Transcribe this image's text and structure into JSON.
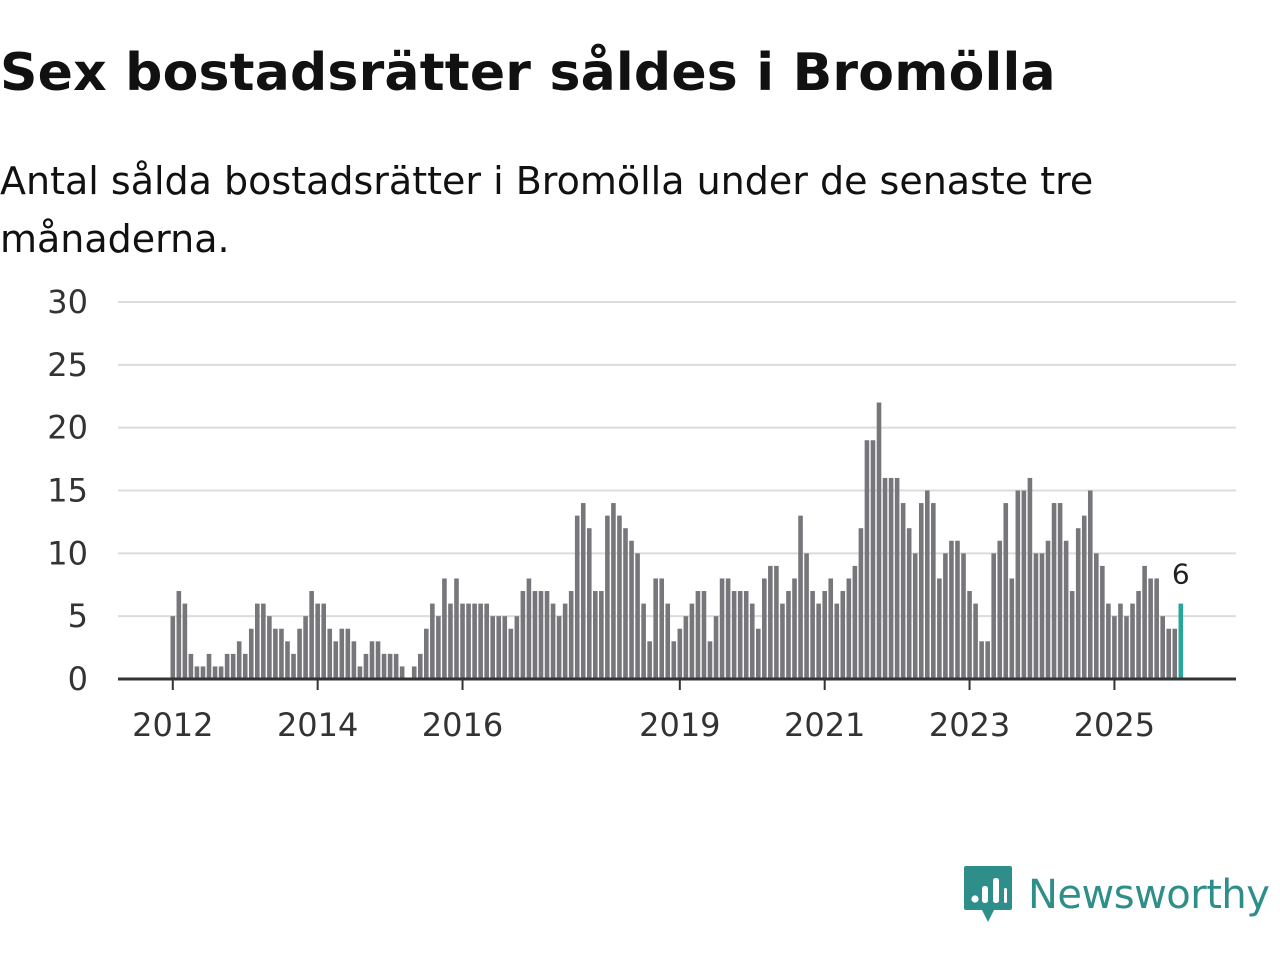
{
  "header": {
    "title": "Sex bostadsrätter såldes i Bromölla",
    "subtitle": "Antal sålda bostadsrätter i Bromölla under de senaste tre månaderna."
  },
  "brand": {
    "name": "Newsworthy",
    "icon": "newsworthy-logo-icon",
    "color": "#2e8f8a"
  },
  "chart_data": {
    "type": "bar",
    "title": "Sex bostadsrätter såldes i Bromölla",
    "subtitle": "Antal sålda bostadsrätter i Bromölla under de senaste tre månaderna.",
    "xlabel": "",
    "ylabel": "",
    "ylim": [
      0,
      30
    ],
    "yticks": [
      0,
      5,
      10,
      15,
      20,
      25,
      30
    ],
    "grid": true,
    "xticks": [
      {
        "label": "2012",
        "index": 0
      },
      {
        "label": "2014",
        "index": 24
      },
      {
        "label": "2016",
        "index": 48
      },
      {
        "label": "2019",
        "index": 84
      },
      {
        "label": "2021",
        "index": 108
      },
      {
        "label": "2023",
        "index": 132
      },
      {
        "label": "2025",
        "index": 156
      }
    ],
    "bar_color": "#77767b",
    "highlight_color": "#2aa59a",
    "last_label": "6",
    "values": [
      5,
      7,
      6,
      2,
      1,
      1,
      2,
      1,
      1,
      2,
      2,
      3,
      2,
      4,
      6,
      6,
      5,
      4,
      4,
      3,
      2,
      4,
      5,
      7,
      6,
      6,
      4,
      3,
      4,
      4,
      3,
      1,
      2,
      3,
      3,
      2,
      2,
      2,
      1,
      0,
      1,
      2,
      4,
      6,
      5,
      8,
      6,
      8,
      6,
      6,
      6,
      6,
      6,
      5,
      5,
      5,
      4,
      5,
      7,
      8,
      7,
      7,
      7,
      6,
      5,
      6,
      7,
      13,
      14,
      12,
      7,
      7,
      13,
      14,
      13,
      12,
      11,
      10,
      6,
      3,
      8,
      8,
      6,
      3,
      4,
      5,
      6,
      7,
      7,
      3,
      5,
      8,
      8,
      7,
      7,
      7,
      6,
      4,
      8,
      9,
      9,
      6,
      7,
      8,
      13,
      10,
      7,
      6,
      7,
      8,
      6,
      7,
      8,
      9,
      12,
      19,
      19,
      22,
      16,
      16,
      16,
      14,
      12,
      10,
      14,
      15,
      14,
      8,
      10,
      11,
      11,
      10,
      7,
      6,
      3,
      3,
      10,
      11,
      14,
      8,
      15,
      15,
      16,
      10,
      10,
      11,
      14,
      14,
      11,
      7,
      12,
      13,
      15,
      10,
      9,
      6,
      5,
      6,
      5,
      6,
      7,
      9,
      8,
      8,
      5,
      4,
      4,
      6
    ]
  }
}
